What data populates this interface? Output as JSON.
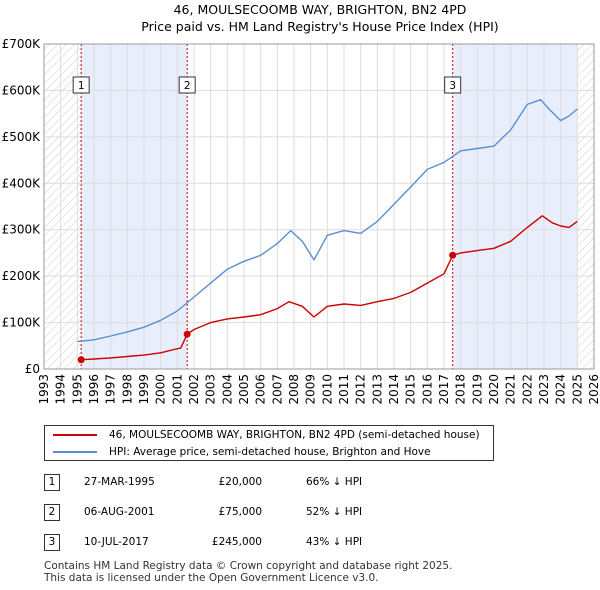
{
  "chart_data": {
    "type": "line",
    "title": "46, MOULSECOOMB WAY, BRIGHTON, BN2 4PD",
    "subtitle": "Price paid vs. HM Land Registry's House Price Index (HPI)",
    "xlabel": "",
    "ylabel": "",
    "xlim": [
      1993,
      2026
    ],
    "ylim": [
      0,
      700000
    ],
    "x_ticks": [
      "1993",
      "1994",
      "1995",
      "1996",
      "1997",
      "1998",
      "1999",
      "2000",
      "2001",
      "2002",
      "2003",
      "2004",
      "2005",
      "2006",
      "2007",
      "2008",
      "2009",
      "2010",
      "2011",
      "2012",
      "2013",
      "2014",
      "2015",
      "2016",
      "2017",
      "2018",
      "2019",
      "2020",
      "2021",
      "2022",
      "2023",
      "2024",
      "2025",
      "2026"
    ],
    "y_ticks": [
      {
        "value": 0,
        "label": "£0"
      },
      {
        "value": 100000,
        "label": "£100K"
      },
      {
        "value": 200000,
        "label": "£200K"
      },
      {
        "value": 300000,
        "label": "£300K"
      },
      {
        "value": 400000,
        "label": "£400K"
      },
      {
        "value": 500000,
        "label": "£500K"
      },
      {
        "value": 600000,
        "label": "£600K"
      },
      {
        "value": 700000,
        "label": "£700K"
      }
    ],
    "grid": true,
    "series": [
      {
        "name": "46, MOULSECOOMB WAY, BRIGHTON, BN2 4PD (semi-detached house)",
        "color": "#cc0000",
        "x": [
          1995.23,
          1996,
          1997,
          1998,
          1999,
          2000,
          2000.8,
          2001.2,
          2001.59,
          2002,
          2003,
          2004,
          2005,
          2006,
          2007,
          2007.7,
          2008.5,
          2009.2,
          2010,
          2011,
          2012,
          2013,
          2014,
          2015,
          2016,
          2017,
          2017.52,
          2018,
          2019,
          2020,
          2021,
          2022,
          2022.9,
          2023.5,
          2024,
          2024.5,
          2025
        ],
        "y": [
          20000,
          21500,
          24000,
          27000,
          30000,
          35000,
          42000,
          45000,
          75000,
          85000,
          100000,
          108000,
          112000,
          117000,
          130000,
          145000,
          135000,
          112000,
          135000,
          140000,
          137000,
          145000,
          152000,
          165000,
          185000,
          205000,
          245000,
          250000,
          255000,
          260000,
          275000,
          305000,
          330000,
          315000,
          308000,
          305000,
          318000
        ]
      },
      {
        "name": "HPI: Average price, semi-detached house, Brighton and Hove",
        "color": "#5b8fd0",
        "x": [
          1995,
          1996,
          1997,
          1998,
          1999,
          2000,
          2001,
          2002,
          2003,
          2004,
          2005,
          2006,
          2007,
          2007.8,
          2008.5,
          2009.2,
          2010,
          2011,
          2012,
          2013,
          2014,
          2015,
          2016,
          2017,
          2018,
          2019,
          2020,
          2021,
          2022,
          2022.8,
          2023.3,
          2024,
          2024.5,
          2025
        ],
        "y": [
          59000,
          63000,
          71000,
          80000,
          90000,
          105000,
          125000,
          155000,
          185000,
          215000,
          232000,
          245000,
          270000,
          298000,
          275000,
          235000,
          288000,
          298000,
          292000,
          318000,
          355000,
          392000,
          430000,
          445000,
          470000,
          475000,
          480000,
          515000,
          570000,
          580000,
          560000,
          535000,
          545000,
          560000
        ]
      }
    ],
    "sales": [
      {
        "num": "1",
        "date": "27-MAR-1995",
        "price": "£20,000",
        "hpi": "66% ↓ HPI",
        "x": 1995.23,
        "value": 20000
      },
      {
        "num": "2",
        "date": "06-AUG-2001",
        "price": "£75,000",
        "hpi": "52% ↓ HPI",
        "x": 2001.59,
        "value": 75000
      },
      {
        "num": "3",
        "date": "10-JUL-2017",
        "price": "£245,000",
        "hpi": "43% ↓ HPI",
        "x": 2017.52,
        "value": 245000
      }
    ]
  },
  "footer": {
    "line1": "Contains HM Land Registry data © Crown copyright and database right 2025.",
    "line2": "This data is licensed under the Open Government Licence v3.0."
  }
}
